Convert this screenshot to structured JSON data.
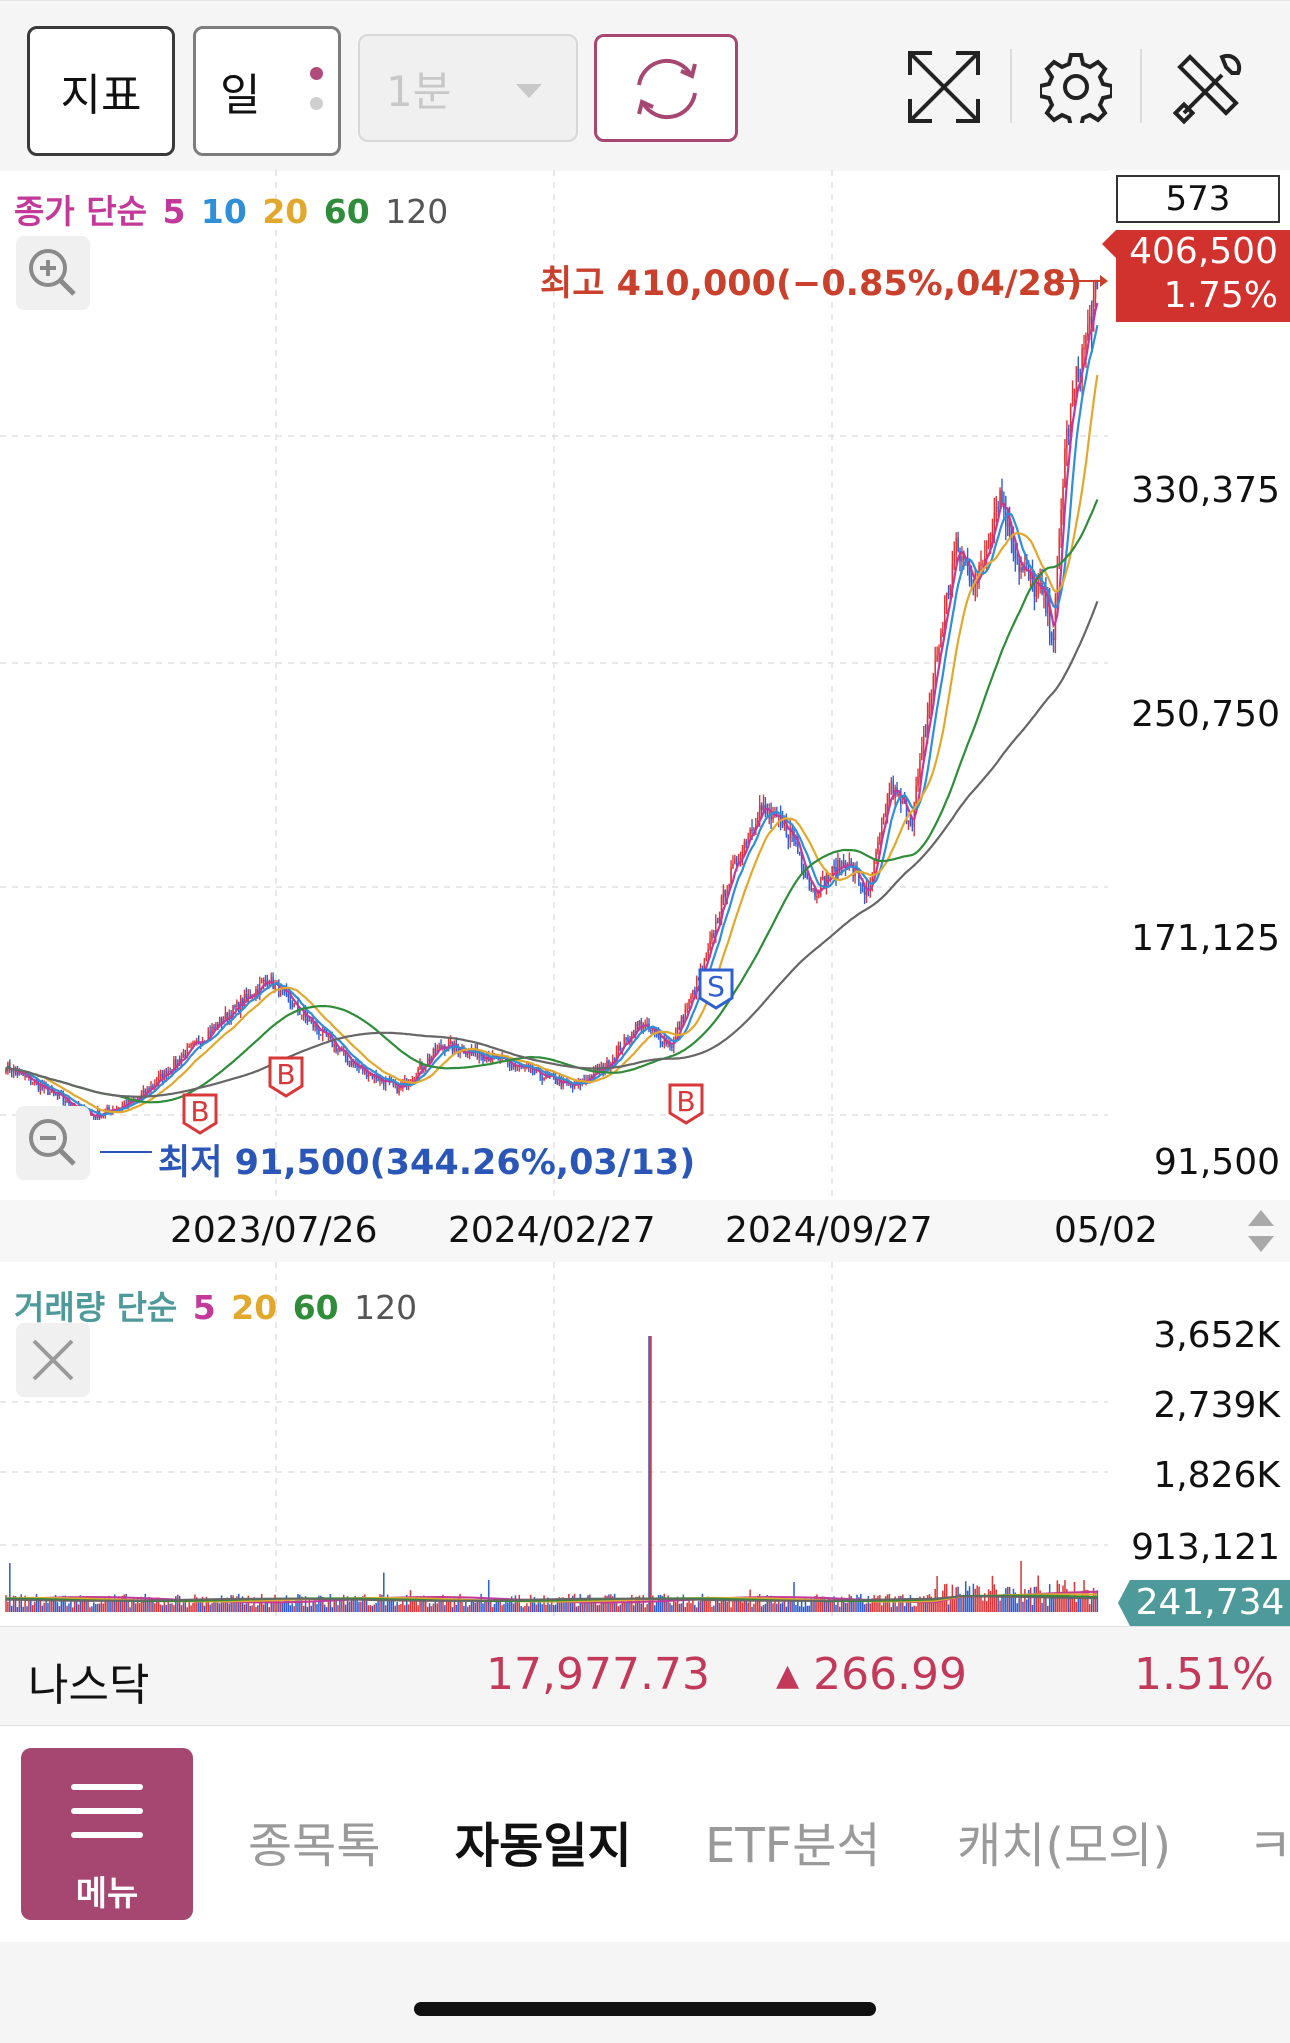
{
  "toolbar": {
    "indicator_label": "지표",
    "period_label": "일",
    "minute_select": "1분",
    "icons": [
      "refresh-icon",
      "fullscreen-icon",
      "gear-icon",
      "tools-icon"
    ]
  },
  "price_chart": {
    "legend": {
      "prefix": "종가 단순",
      "ma": [
        "5",
        "10",
        "20",
        "60",
        "120"
      ],
      "colors": [
        "#c2399a",
        "#2e8fd6",
        "#e2a82d",
        "#2f8c3a",
        "#555555"
      ]
    },
    "count_box": "573",
    "current_price": "406,500",
    "current_change": "1.75%",
    "high_annotation": "최고 410,000(−0.85%,04/28)",
    "low_annotation": "최저 91,500(344.26%,03/13)",
    "y_labels": [
      "330,375",
      "250,750",
      "171,125",
      "91,500"
    ],
    "x_labels": [
      "2023/07/26",
      "2024/02/27",
      "2024/09/27",
      "05/02"
    ],
    "signals": [
      "B",
      "B",
      "S",
      "B"
    ]
  },
  "volume_chart": {
    "legend": {
      "prefix": "거래량 단순",
      "ma": [
        "5",
        "20",
        "60",
        "120"
      ],
      "colors": [
        "#c2399a",
        "#e2a82d",
        "#2f8c3a",
        "#555555"
      ]
    },
    "y_labels": [
      "3,652K",
      "2,739K",
      "1,826K",
      "913,121"
    ],
    "current_volume": "241,734"
  },
  "index_bar": {
    "name": "나스닥",
    "value": "17,977.73",
    "change": "266.99",
    "percent": "1.51%"
  },
  "bottom_nav": {
    "menu_label": "메뉴",
    "tabs": [
      "종목톡",
      "자동일지",
      "ETF분석",
      "캐치(모의)",
      "ㅋ"
    ]
  },
  "chart_data": {
    "type": "candlestick",
    "y_range": [
      91500,
      410000
    ],
    "x_ticks": [
      "2023/07/26",
      "2024/02/27",
      "2024/09/27",
      "05/02"
    ],
    "high": {
      "value": 410000,
      "date": "04/28"
    },
    "low": {
      "value": 91500,
      "date": "03/13"
    },
    "last_close": 406500,
    "trend_points": [
      {
        "x": 0.0,
        "close": 112000
      },
      {
        "x": 0.04,
        "close": 102000
      },
      {
        "x": 0.08,
        "close": 93000
      },
      {
        "x": 0.12,
        "close": 99000
      },
      {
        "x": 0.16,
        "close": 115000
      },
      {
        "x": 0.2,
        "close": 130000
      },
      {
        "x": 0.24,
        "close": 145000
      },
      {
        "x": 0.28,
        "close": 128000
      },
      {
        "x": 0.32,
        "close": 112000
      },
      {
        "x": 0.36,
        "close": 103000
      },
      {
        "x": 0.4,
        "close": 120000
      },
      {
        "x": 0.44,
        "close": 116000
      },
      {
        "x": 0.48,
        "close": 110000
      },
      {
        "x": 0.52,
        "close": 104000
      },
      {
        "x": 0.55,
        "close": 112000
      },
      {
        "x": 0.58,
        "close": 128000
      },
      {
        "x": 0.61,
        "close": 120000
      },
      {
        "x": 0.64,
        "close": 150000
      },
      {
        "x": 0.66,
        "close": 180000
      },
      {
        "x": 0.69,
        "close": 210000
      },
      {
        "x": 0.72,
        "close": 200000
      },
      {
        "x": 0.74,
        "close": 178000
      },
      {
        "x": 0.77,
        "close": 190000
      },
      {
        "x": 0.79,
        "close": 176000
      },
      {
        "x": 0.81,
        "close": 218000
      },
      {
        "x": 0.83,
        "close": 205000
      },
      {
        "x": 0.85,
        "close": 260000
      },
      {
        "x": 0.87,
        "close": 308000
      },
      {
        "x": 0.89,
        "close": 295000
      },
      {
        "x": 0.91,
        "close": 330000
      },
      {
        "x": 0.93,
        "close": 300000
      },
      {
        "x": 0.95,
        "close": 290000
      },
      {
        "x": 0.96,
        "close": 275000
      },
      {
        "x": 0.97,
        "close": 345000
      },
      {
        "x": 0.98,
        "close": 370000
      },
      {
        "x": 1.0,
        "close": 406500
      }
    ],
    "volume_spike": {
      "x": 0.59,
      "value": 3600000
    },
    "volume_last": 241734
  }
}
